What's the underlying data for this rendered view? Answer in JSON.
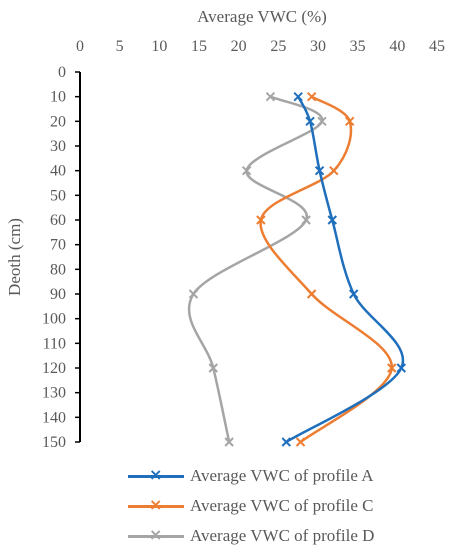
{
  "chart_data": {
    "type": "line",
    "orientation": "depth-profile",
    "title": "",
    "xlabel": "Average VWC  (%)",
    "ylabel": "Deoth (cm)",
    "xlim": [
      0,
      45
    ],
    "ylim": [
      0,
      150
    ],
    "x_axis_position": "top",
    "y_axis_inverted": true,
    "x_ticks": [
      "0",
      "5",
      "10",
      "15",
      "20",
      "25",
      "30",
      "35",
      "40",
      "45"
    ],
    "y_ticks": [
      "0",
      "10",
      "20",
      "30",
      "40",
      "50",
      "60",
      "70",
      "80",
      "90",
      "100",
      "110",
      "120",
      "130",
      "140",
      "150"
    ],
    "grid": false,
    "legend_position": "bottom",
    "series": [
      {
        "name": "Average VWC of profile A",
        "color": "#1f6fbd",
        "depth": [
          10,
          20,
          40,
          60,
          90,
          120,
          150
        ],
        "vwc": [
          27.5,
          29.0,
          30.2,
          31.8,
          34.5,
          40.5,
          26.0
        ]
      },
      {
        "name": "Average VWC of profile C",
        "color": "#ed7d31",
        "depth": [
          10,
          20,
          40,
          60,
          90,
          120,
          150
        ],
        "vwc": [
          29.2,
          34.0,
          32.0,
          22.8,
          29.2,
          39.3,
          27.8
        ]
      },
      {
        "name": "Average VWC of profile D",
        "color": "#a5a5a5",
        "depth": [
          10,
          20,
          40,
          60,
          90,
          120,
          150
        ],
        "vwc": [
          24.0,
          30.5,
          21.0,
          28.5,
          14.3,
          16.8,
          18.8
        ]
      }
    ]
  }
}
